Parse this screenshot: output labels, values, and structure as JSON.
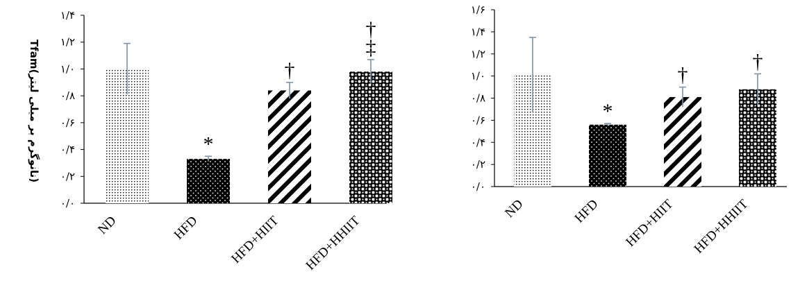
{
  "charts": [
    {
      "type": "bar",
      "ylabel": "Tfam(نانوگرم بر میلی لیتر)",
      "categories": [
        "ND",
        "HFD",
        "HFD+HIIT",
        "HFD+HHIIT"
      ],
      "values": [
        1.0,
        0.33,
        0.84,
        0.98
      ],
      "errors": [
        0.19,
        0.02,
        0.06,
        0.09
      ],
      "markers": [
        "",
        "*",
        "†",
        "†‡"
      ],
      "ylim": [
        0,
        1.4
      ],
      "yticks": [
        0,
        0.2,
        0.4,
        0.6,
        0.8,
        1.0,
        1.2,
        1.4
      ],
      "ytick_labels": [
        "۰/۰",
        "۰/۲",
        "۰/۴",
        "۰/۶",
        "۰/۸",
        "۱/۰",
        "۱/۲",
        "۱/۴"
      ],
      "patterns": [
        "dots-fine",
        "dots-on-black",
        "diagonal-stripes",
        "circles-checker"
      ],
      "error_color": "#7f93aa",
      "grid": false
    },
    {
      "type": "bar",
      "ylabel": "",
      "categories": [
        "ND",
        "HFD",
        "HFD+HIIT",
        "HFD+HHIIT"
      ],
      "values": [
        1.01,
        0.56,
        0.81,
        0.88
      ],
      "errors": [
        0.34,
        0.01,
        0.09,
        0.14
      ],
      "markers": [
        "",
        "*",
        "†",
        "†"
      ],
      "ylim": [
        0,
        1.6
      ],
      "yticks": [
        0,
        0.2,
        0.4,
        0.6,
        0.8,
        1.0,
        1.2,
        1.4,
        1.6
      ],
      "ytick_labels": [
        "۰/۰",
        "۰/۲",
        "۰/۴",
        "۰/۶",
        "۰/۸",
        "۱/۰",
        "۱/۲",
        "۱/۴",
        "۱/۶"
      ],
      "patterns": [
        "dots-fine",
        "dots-on-black",
        "diagonal-stripes",
        "circles-checker"
      ],
      "error_color": "#7f93aa",
      "grid": false
    }
  ]
}
